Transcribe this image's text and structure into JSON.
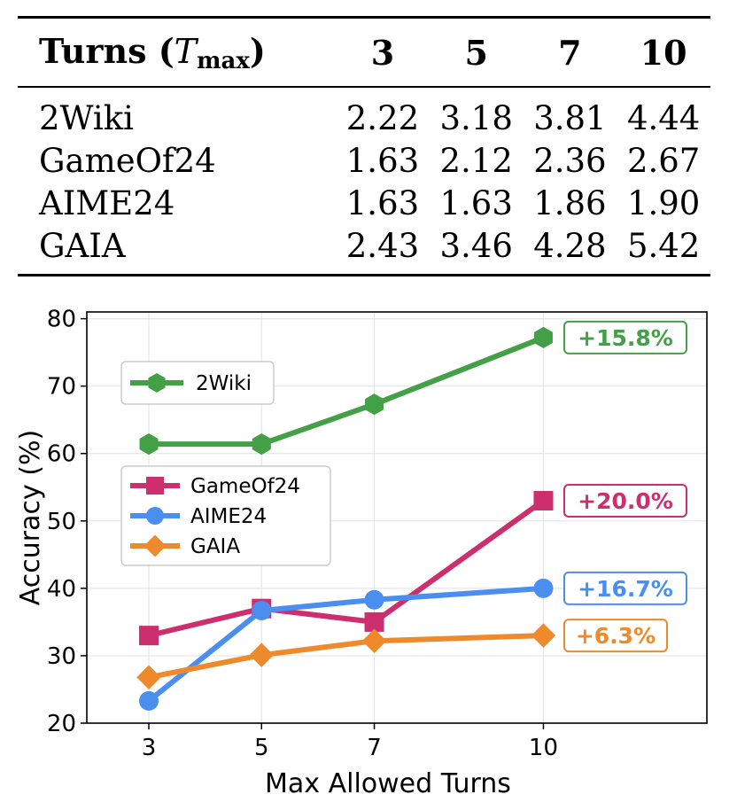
{
  "table": {
    "header": {
      "label_main": "Turns (",
      "label_T": "T",
      "label_sub": "max",
      "label_close": ")",
      "cols": [
        "3",
        "5",
        "7",
        "10"
      ]
    },
    "rows": [
      {
        "name": "2Wiki",
        "values": [
          "2.22",
          "3.18",
          "3.81",
          "4.44"
        ]
      },
      {
        "name": "GameOf24",
        "values": [
          "1.63",
          "2.12",
          "2.36",
          "2.67"
        ]
      },
      {
        "name": "AIME24",
        "values": [
          "1.63",
          "1.63",
          "1.86",
          "1.90"
        ]
      },
      {
        "name": "GAIA",
        "values": [
          "2.43",
          "3.46",
          "4.28",
          "5.42"
        ]
      }
    ]
  },
  "chart_data": {
    "type": "line",
    "xlabel": "Max Allowed Turns",
    "ylabel": "Accuracy (%)",
    "x": [
      3,
      5,
      7,
      10
    ],
    "xticks": [
      "3",
      "5",
      "7",
      "10"
    ],
    "xlim": [
      1.9,
      12.9
    ],
    "ylim": [
      20,
      81
    ],
    "yticks": [
      20,
      30,
      40,
      50,
      60,
      70,
      80
    ],
    "grid": true,
    "legend": [
      "top-left",
      "center-left"
    ],
    "series": [
      {
        "name": "2Wiki",
        "values": [
          61.4,
          61.4,
          67.3,
          77.2
        ],
        "color": "#43a047",
        "marker": "hexagon",
        "gain": "+15.8%"
      },
      {
        "name": "GameOf24",
        "values": [
          33.0,
          37.0,
          35.0,
          53.0
        ],
        "color": "#cc2e6e",
        "marker": "square",
        "gain": "+20.0%"
      },
      {
        "name": "AIME24",
        "values": [
          23.3,
          36.7,
          38.3,
          40.0
        ],
        "color": "#4a8ff0",
        "marker": "circle",
        "gain": "+16.7%"
      },
      {
        "name": "GAIA",
        "values": [
          26.8,
          30.1,
          32.2,
          33.0
        ],
        "color": "#ef8a2c",
        "marker": "diamond",
        "gain": "+6.3%"
      }
    ]
  }
}
